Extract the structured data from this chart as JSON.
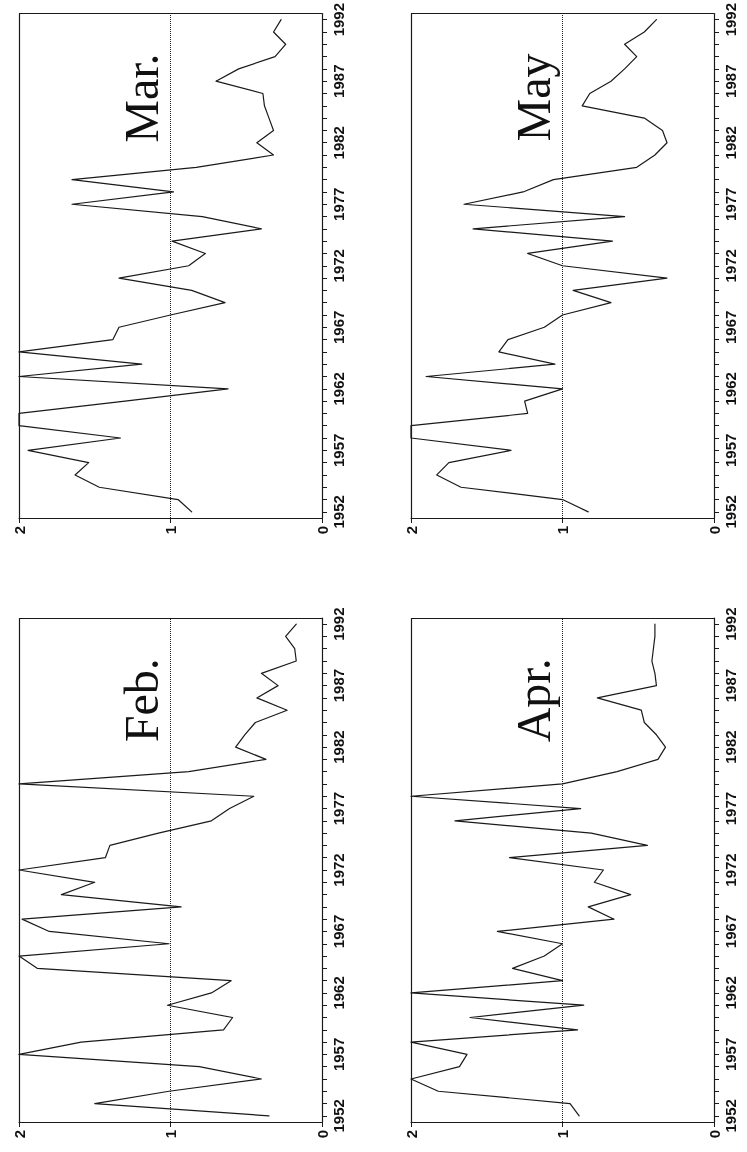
{
  "chart_data": [
    {
      "type": "line",
      "title": "Feb.",
      "series": [
        {
          "color": "#1a1a1a",
          "x": [
            0.35,
            1.5,
            1.01,
            0.4,
            0.81,
            2.0,
            1.59,
            0.65,
            0.59,
            1.02,
            0.73,
            0.6,
            1.88,
            2.0,
            1.01,
            1.8,
            1.98,
            0.93,
            1.72,
            1.5,
            2.0,
            1.43,
            1.4,
            1.08,
            0.73,
            0.61,
            0.45,
            2.0,
            0.88,
            0.37,
            0.57,
            0.51,
            0.44,
            0.23,
            0.43,
            0.29,
            0.4,
            0.17,
            0.18,
            0.24,
            0.17
          ],
          "values": [
            1952,
            1953,
            1954,
            1955,
            1956,
            1957,
            1958,
            1959,
            1960,
            1961,
            1962,
            1963,
            1964,
            1965,
            1966,
            1967,
            1968,
            1969,
            1970,
            1971,
            1972,
            1973,
            1974,
            1975,
            1976,
            1977,
            1978,
            1979,
            1980,
            1981,
            1982,
            1983,
            1984,
            1985,
            1986,
            1987,
            1988,
            1989,
            1990,
            1991,
            1992
          ]
        }
      ],
      "xlim": [
        2,
        0
      ],
      "xticks": [
        2,
        1,
        0
      ],
      "ylim": [
        1951.5,
        1992.5
      ],
      "yticks": [
        1952,
        {
          "value": 1953,
          "label": null
        },
        {
          "value": 1954,
          "label": null
        },
        {
          "value": 1955,
          "label": null
        },
        {
          "value": 1956,
          "label": null
        },
        1957,
        {
          "value": 1958,
          "label": null
        },
        {
          "value": 1959,
          "label": null
        },
        {
          "value": 1960,
          "label": null
        },
        {
          "value": 1961,
          "label": null
        },
        1962,
        {
          "value": 1963,
          "label": null
        },
        {
          "value": 1964,
          "label": null
        },
        {
          "value": 1965,
          "label": null
        },
        {
          "value": 1966,
          "label": null
        },
        1967,
        {
          "value": 1968,
          "label": null
        },
        {
          "value": 1969,
          "label": null
        },
        {
          "value": 1970,
          "label": null
        },
        {
          "value": 1971,
          "label": null
        },
        1972,
        {
          "value": 1973,
          "label": null
        },
        {
          "value": 1974,
          "label": null
        },
        {
          "value": 1975,
          "label": null
        },
        {
          "value": 1976,
          "label": null
        },
        1977,
        {
          "value": 1978,
          "label": null
        },
        {
          "value": 1979,
          "label": null
        },
        {
          "value": 1980,
          "label": null
        },
        {
          "value": 1981,
          "label": null
        },
        1982,
        {
          "value": 1983,
          "label": null
        },
        {
          "value": 1984,
          "label": null
        },
        {
          "value": 1985,
          "label": null
        },
        {
          "value": 1986,
          "label": null
        },
        1987,
        {
          "value": 1988,
          "label": null
        },
        {
          "value": 1989,
          "label": null
        },
        {
          "value": 1990,
          "label": null
        },
        {
          "value": 1991,
          "label": null
        },
        1992
      ],
      "ref_lines": [
        {
          "axis": "x",
          "value": 1,
          "line_style": "dotted",
          "color": "#1a1a1a"
        }
      ],
      "line_style": "solid"
    },
    {
      "type": "line",
      "title": "Mar.",
      "series": [
        {
          "color": "#1a1a1a",
          "x": [
            0.86,
            0.95,
            1.47,
            1.63,
            1.54,
            1.94,
            1.33,
            2.0,
            2.0,
            1.3,
            0.62,
            2.0,
            1.19,
            2.0,
            1.38,
            1.34,
            1.0,
            0.64,
            0.86,
            1.34,
            0.88,
            0.77,
            0.99,
            0.4,
            0.79,
            1.65,
            0.98,
            1.65,
            0.83,
            0.32,
            0.43,
            0.32,
            0.35,
            0.38,
            0.39,
            0.7,
            0.55,
            0.31,
            0.24,
            0.32,
            0.27
          ],
          "values": [
            1952,
            1953,
            1954,
            1955,
            1956,
            1957,
            1958,
            1959,
            1960,
            1961,
            1962,
            1963,
            1964,
            1965,
            1966,
            1967,
            1968,
            1969,
            1970,
            1971,
            1972,
            1973,
            1974,
            1975,
            1976,
            1977,
            1978,
            1979,
            1980,
            1981,
            1982,
            1983,
            1984,
            1985,
            1986,
            1987,
            1988,
            1989,
            1990,
            1991,
            1992
          ]
        }
      ],
      "xlim": [
        2,
        0
      ],
      "xticks": [
        2,
        1,
        0
      ],
      "ylim": [
        1951.5,
        1992.5
      ],
      "yticks": [
        1952,
        {
          "value": 1953,
          "label": null
        },
        {
          "value": 1954,
          "label": null
        },
        {
          "value": 1955,
          "label": null
        },
        {
          "value": 1956,
          "label": null
        },
        1957,
        {
          "value": 1958,
          "label": null
        },
        {
          "value": 1959,
          "label": null
        },
        {
          "value": 1960,
          "label": null
        },
        {
          "value": 1961,
          "label": null
        },
        1962,
        {
          "value": 1963,
          "label": null
        },
        {
          "value": 1964,
          "label": null
        },
        {
          "value": 1965,
          "label": null
        },
        {
          "value": 1966,
          "label": null
        },
        1967,
        {
          "value": 1968,
          "label": null
        },
        {
          "value": 1969,
          "label": null
        },
        {
          "value": 1970,
          "label": null
        },
        {
          "value": 1971,
          "label": null
        },
        1972,
        {
          "value": 1973,
          "label": null
        },
        {
          "value": 1974,
          "label": null
        },
        {
          "value": 1975,
          "label": null
        },
        {
          "value": 1976,
          "label": null
        },
        1977,
        {
          "value": 1978,
          "label": null
        },
        {
          "value": 1979,
          "label": null
        },
        {
          "value": 1980,
          "label": null
        },
        {
          "value": 1981,
          "label": null
        },
        1982,
        {
          "value": 1983,
          "label": null
        },
        {
          "value": 1984,
          "label": null
        },
        {
          "value": 1985,
          "label": null
        },
        {
          "value": 1986,
          "label": null
        },
        1987,
        {
          "value": 1988,
          "label": null
        },
        {
          "value": 1989,
          "label": null
        },
        {
          "value": 1990,
          "label": null
        },
        {
          "value": 1991,
          "label": null
        },
        1992
      ],
      "ref_lines": [
        {
          "axis": "x",
          "value": 1,
          "line_style": "dotted",
          "color": "#1a1a1a"
        }
      ],
      "line_style": "solid"
    },
    {
      "type": "line",
      "title": "Apr.",
      "series": [
        {
          "color": "#1a1a1a",
          "x": [
            0.89,
            0.95,
            1.82,
            2.0,
            1.68,
            1.63,
            2.0,
            0.9,
            1.61,
            0.86,
            2.0,
            1.0,
            1.33,
            1.12,
            1.0,
            1.43,
            0.66,
            0.83,
            0.55,
            0.79,
            0.73,
            1.35,
            0.44,
            0.81,
            1.71,
            0.88,
            2.0,
            1.0,
            0.64,
            0.37,
            0.32,
            0.38,
            0.46,
            0.48,
            0.77,
            0.38,
            0.39,
            0.41,
            0.4,
            0.39,
            0.39
          ],
          "values": [
            1952,
            1953,
            1954,
            1955,
            1956,
            1957,
            1958,
            1959,
            1960,
            1961,
            1962,
            1963,
            1964,
            1965,
            1966,
            1967,
            1968,
            1969,
            1970,
            1971,
            1972,
            1973,
            1974,
            1975,
            1976,
            1977,
            1978,
            1979,
            1980,
            1981,
            1982,
            1983,
            1984,
            1985,
            1986,
            1987,
            1988,
            1989,
            1990,
            1991,
            1992
          ]
        }
      ],
      "xlim": [
        2,
        0
      ],
      "xticks": [
        2,
        1,
        0
      ],
      "ylim": [
        1951.5,
        1992.5
      ],
      "yticks": [
        1952,
        {
          "value": 1953,
          "label": null
        },
        {
          "value": 1954,
          "label": null
        },
        {
          "value": 1955,
          "label": null
        },
        {
          "value": 1956,
          "label": null
        },
        1957,
        {
          "value": 1958,
          "label": null
        },
        {
          "value": 1959,
          "label": null
        },
        {
          "value": 1960,
          "label": null
        },
        {
          "value": 1961,
          "label": null
        },
        1962,
        {
          "value": 1963,
          "label": null
        },
        {
          "value": 1964,
          "label": null
        },
        {
          "value": 1965,
          "label": null
        },
        {
          "value": 1966,
          "label": null
        },
        1967,
        {
          "value": 1968,
          "label": null
        },
        {
          "value": 1969,
          "label": null
        },
        {
          "value": 1970,
          "label": null
        },
        {
          "value": 1971,
          "label": null
        },
        1972,
        {
          "value": 1973,
          "label": null
        },
        {
          "value": 1974,
          "label": null
        },
        {
          "value": 1975,
          "label": null
        },
        {
          "value": 1976,
          "label": null
        },
        1977,
        {
          "value": 1978,
          "label": null
        },
        {
          "value": 1979,
          "label": null
        },
        {
          "value": 1980,
          "label": null
        },
        {
          "value": 1981,
          "label": null
        },
        1982,
        {
          "value": 1983,
          "label": null
        },
        {
          "value": 1984,
          "label": null
        },
        {
          "value": 1985,
          "label": null
        },
        {
          "value": 1986,
          "label": null
        },
        1987,
        {
          "value": 1988,
          "label": null
        },
        {
          "value": 1989,
          "label": null
        },
        {
          "value": 1990,
          "label": null
        },
        {
          "value": 1991,
          "label": null
        },
        1992
      ],
      "ref_lines": [
        {
          "axis": "x",
          "value": 1,
          "line_style": "dotted",
          "color": "#1a1a1a"
        }
      ],
      "line_style": "solid"
    },
    {
      "type": "line",
      "title": "May",
      "series": [
        {
          "color": "#1a1a1a",
          "x": [
            0.83,
            1.0,
            1.67,
            1.83,
            1.75,
            1.34,
            2.0,
            2.0,
            1.23,
            1.25,
            1.0,
            1.9,
            1.05,
            1.42,
            1.36,
            1.12,
            1.0,
            0.68,
            0.93,
            0.31,
            1.0,
            1.23,
            0.67,
            1.59,
            0.59,
            1.65,
            1.26,
            1.06,
            0.51,
            0.39,
            0.31,
            0.34,
            0.46,
            0.87,
            0.82,
            0.68,
            0.59,
            0.51,
            0.59,
            0.46,
            0.38
          ],
          "values": [
            1952,
            1953,
            1954,
            1955,
            1956,
            1957,
            1958,
            1959,
            1960,
            1961,
            1962,
            1963,
            1964,
            1965,
            1966,
            1967,
            1968,
            1969,
            1970,
            1971,
            1972,
            1973,
            1974,
            1975,
            1976,
            1977,
            1978,
            1979,
            1980,
            1981,
            1982,
            1983,
            1984,
            1985,
            1986,
            1987,
            1988,
            1989,
            1990,
            1991,
            1992
          ]
        }
      ],
      "xlim": [
        2,
        0
      ],
      "xticks": [
        2,
        1,
        0
      ],
      "ylim": [
        1951.5,
        1992.5
      ],
      "yticks": [
        1952,
        {
          "value": 1953,
          "label": null
        },
        {
          "value": 1954,
          "label": null
        },
        {
          "value": 1955,
          "label": null
        },
        {
          "value": 1956,
          "label": null
        },
        1957,
        {
          "value": 1958,
          "label": null
        },
        {
          "value": 1959,
          "label": null
        },
        {
          "value": 1960,
          "label": null
        },
        {
          "value": 1961,
          "label": null
        },
        1962,
        {
          "value": 1963,
          "label": null
        },
        {
          "value": 1964,
          "label": null
        },
        {
          "value": 1965,
          "label": null
        },
        {
          "value": 1966,
          "label": null
        },
        1967,
        {
          "value": 1968,
          "label": null
        },
        {
          "value": 1969,
          "label": null
        },
        {
          "value": 1970,
          "label": null
        },
        {
          "value": 1971,
          "label": null
        },
        1972,
        {
          "value": 1973,
          "label": null
        },
        {
          "value": 1974,
          "label": null
        },
        {
          "value": 1975,
          "label": null
        },
        {
          "value": 1976,
          "label": null
        },
        1977,
        {
          "value": 1978,
          "label": null
        },
        {
          "value": 1979,
          "label": null
        },
        {
          "value": 1980,
          "label": null
        },
        {
          "value": 1981,
          "label": null
        },
        1982,
        {
          "value": 1983,
          "label": null
        },
        {
          "value": 1984,
          "label": null
        },
        {
          "value": 1985,
          "label": null
        },
        {
          "value": 1986,
          "label": null
        },
        1987,
        {
          "value": 1988,
          "label": null
        },
        {
          "value": 1989,
          "label": null
        },
        {
          "value": 1990,
          "label": null
        },
        {
          "value": 1991,
          "label": null
        },
        1992
      ],
      "ref_lines": [
        {
          "axis": "x",
          "value": 1,
          "line_style": "dotted",
          "color": "#1a1a1a"
        }
      ],
      "line_style": "solid"
    }
  ]
}
